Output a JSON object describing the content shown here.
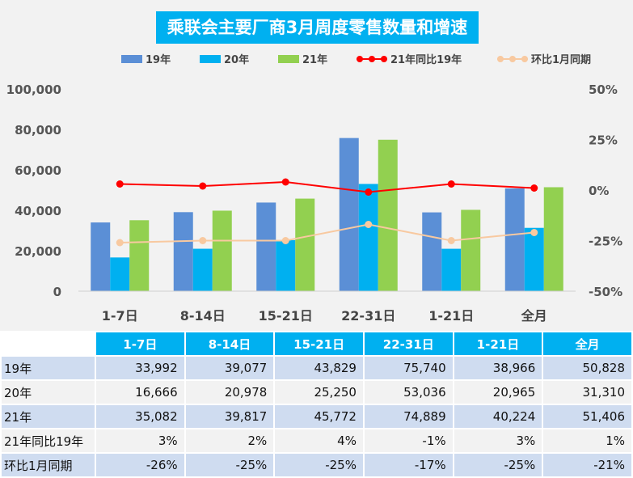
{
  "chart_data": {
    "type": "bar",
    "title": "乘联会主要厂商3月周度零售数量和增速",
    "categories": [
      "1-7日",
      "8-14日",
      "15-21日",
      "22-31日",
      "1-21日",
      "全月"
    ],
    "series": [
      {
        "name": "19年",
        "type": "bar",
        "axis": "left",
        "color": "#5b8fd6",
        "values": [
          33992,
          39077,
          43829,
          75740,
          38966,
          50828
        ]
      },
      {
        "name": "20年",
        "type": "bar",
        "axis": "left",
        "color": "#00b0f0",
        "values": [
          16666,
          20978,
          25250,
          53036,
          20965,
          31310
        ]
      },
      {
        "name": "21年",
        "type": "bar",
        "axis": "left",
        "color": "#92d050",
        "values": [
          35082,
          39817,
          45772,
          74889,
          40224,
          51406
        ]
      },
      {
        "name": "21年同比19年",
        "type": "line",
        "axis": "right",
        "color": "#ff0000",
        "values": [
          3,
          2,
          4,
          -1,
          3,
          1
        ]
      },
      {
        "name": "环比1月同期",
        "type": "line",
        "axis": "right",
        "color": "#f8c9a0",
        "values": [
          -26,
          -25,
          -25,
          -17,
          -25,
          -21
        ]
      }
    ],
    "y_left": {
      "min": 0,
      "max": 100000,
      "ticks": [
        "0",
        "20,000",
        "40,000",
        "60,000",
        "80,000",
        "100,000"
      ]
    },
    "y_right": {
      "min": -50,
      "max": 50,
      "ticks": [
        "-50%",
        "-25%",
        "0%",
        "25%",
        "50%"
      ]
    },
    "legend_position": "top",
    "grid": false
  },
  "table": {
    "columns": [
      "1-7日",
      "8-14日",
      "15-21日",
      "22-31日",
      "1-21日",
      "全月"
    ],
    "rows": [
      {
        "label": "19年",
        "cells": [
          "33,992",
          "39,077",
          "43,829",
          "75,740",
          "38,966",
          "50,828"
        ]
      },
      {
        "label": "20年",
        "cells": [
          "16,666",
          "20,978",
          "25,250",
          "53,036",
          "20,965",
          "31,310"
        ]
      },
      {
        "label": "21年",
        "cells": [
          "35,082",
          "39,817",
          "45,772",
          "74,889",
          "40,224",
          "51,406"
        ]
      },
      {
        "label": "21年同比19年",
        "cells": [
          "3%",
          "2%",
          "4%",
          "-1%",
          "3%",
          "1%"
        ]
      },
      {
        "label": "环比1月同期",
        "cells": [
          "-26%",
          "-25%",
          "-25%",
          "-17%",
          "-25%",
          "-21%"
        ]
      }
    ]
  }
}
